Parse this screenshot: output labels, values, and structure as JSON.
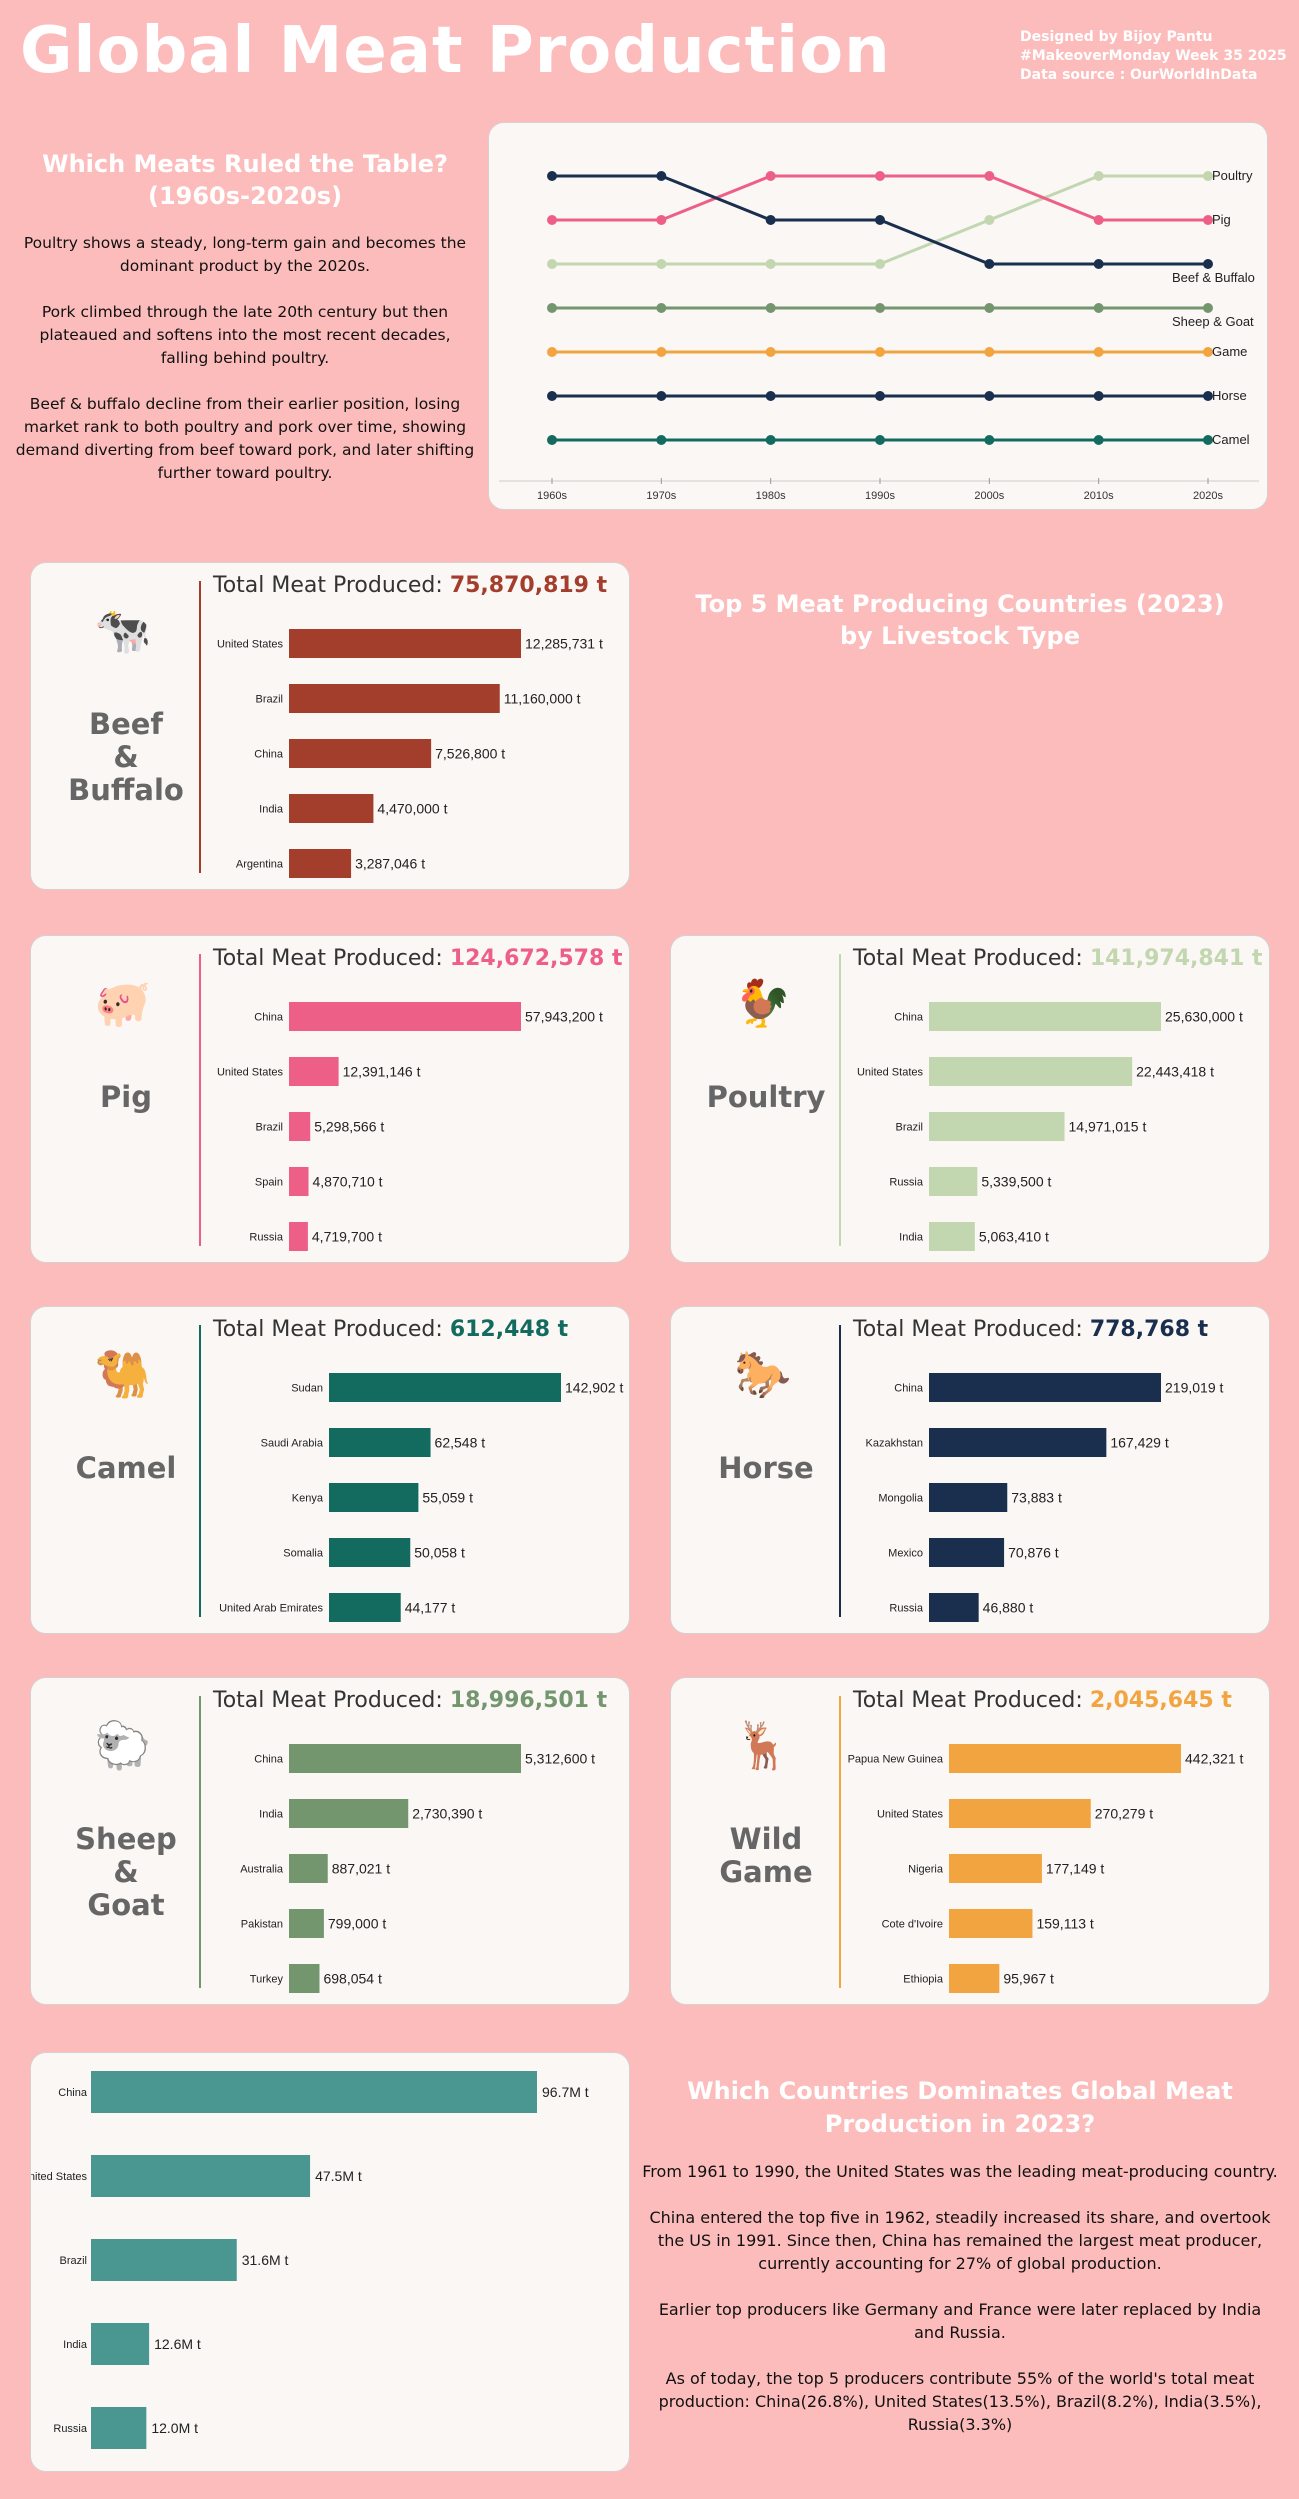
{
  "header": {
    "title": "Global Meat Production",
    "credits": [
      "Designed by Bijoy Pantu",
      "#MakeoverMonday Week 35 2025",
      "Data source : OurWorldInData"
    ]
  },
  "intro": {
    "title_line1": "Which Meats Ruled the Table?",
    "title_line2": "(1960s-2020s)",
    "paragraphs": [
      "Poultry shows a steady, long-term gain and becomes the dominant product by the 2020s.",
      "Pork climbed through the late 20th century but then plateaued and softens into the most recent decades, falling behind poultry.",
      "Beef & buffalo decline from their earlier position, losing market rank to both poultry and pork over time, showing demand diverting from beef toward pork, and later shifting further toward poultry."
    ]
  },
  "section_titles": {
    "top5_line1": "Top 5 Meat Producing Countries (2023)",
    "top5_line2": "by Livestock Type",
    "countries_line1": "Which Countries Dominates Global Meat",
    "countries_line2": "Production in 2023?"
  },
  "total_label": "Total Meat Produced: ",
  "cards": [
    {
      "key": "beef",
      "name_lines": [
        "Beef",
        "&",
        "Buffalo"
      ],
      "icon": "cow-icon",
      "glyph": "🐄",
      "total": "75,870,819 t",
      "color": "#a33d2c"
    },
    {
      "key": "pig",
      "name_lines": [
        "Pig"
      ],
      "icon": "pig-icon",
      "glyph": "🐖",
      "total": "124,672,578 t",
      "color": "#ee5f88"
    },
    {
      "key": "poultry",
      "name_lines": [
        "Poultry"
      ],
      "icon": "rooster-icon",
      "glyph": "🐓",
      "total": "141,974,841 t",
      "color": "#c2d6b0"
    },
    {
      "key": "camel",
      "name_lines": [
        "Camel"
      ],
      "icon": "camel-icon",
      "glyph": "🐫",
      "total": "612,448 t",
      "color": "#136b60"
    },
    {
      "key": "horse",
      "name_lines": [
        "Horse"
      ],
      "icon": "horse-icon",
      "glyph": "🐎",
      "total": "778,768 t",
      "color": "#1a2f4e"
    },
    {
      "key": "sheep",
      "name_lines": [
        "Sheep",
        "&",
        "Goat"
      ],
      "icon": "sheep-icon",
      "glyph": "🐑",
      "total": "18,996,501 t",
      "color": "#74966f"
    },
    {
      "key": "game",
      "name_lines": [
        "Wild",
        "Game"
      ],
      "icon": "deer-icon",
      "glyph": "🦌",
      "total": "2,045,645 t",
      "color": "#f2a440"
    }
  ],
  "colors": {
    "background": "#fcbcbc",
    "panel": "#faf7f5",
    "total_bar": "#4a9691",
    "poultry": "#c2d6b0",
    "pig": "#ee5f88",
    "beef": "#1a2f4e",
    "sheep": "#74966f",
    "game": "#f2a440",
    "horse": "#1a2f4e",
    "camel": "#136b60"
  },
  "chart_data": [
    {
      "type": "line",
      "title": "",
      "x": [
        "1960s",
        "1970s",
        "1980s",
        "1990s",
        "2000s",
        "2010s",
        "2020s"
      ],
      "ylabel": "",
      "y_inverted_rank": true,
      "ylim": [
        1,
        7
      ],
      "series": [
        {
          "name": "Poultry",
          "color": "#c2d6b0",
          "values": [
            3,
            3,
            3,
            3,
            2,
            1,
            1
          ]
        },
        {
          "name": "Pig",
          "color": "#ee5f88",
          "values": [
            2,
            2,
            1,
            1,
            1,
            2,
            2
          ]
        },
        {
          "name": "Beef & Buffalo",
          "color": "#1a2f4e",
          "values": [
            1,
            1,
            2,
            2,
            3,
            3,
            3
          ]
        },
        {
          "name": "Sheep & Goat",
          "color": "#74966f",
          "values": [
            4,
            4,
            4,
            4,
            4,
            4,
            4
          ]
        },
        {
          "name": "Game",
          "color": "#f2a440",
          "values": [
            5,
            5,
            5,
            5,
            5,
            5,
            5
          ]
        },
        {
          "name": "Horse",
          "color": "#1a2f4e",
          "values": [
            6,
            6,
            6,
            6,
            6,
            6,
            6
          ]
        },
        {
          "name": "Camel",
          "color": "#136b60",
          "values": [
            7,
            7,
            7,
            7,
            7,
            7,
            7
          ]
        }
      ]
    },
    {
      "type": "bar",
      "orientation": "horizontal",
      "title": "Beef & Buffalo",
      "categories": [
        "United States",
        "Brazil",
        "China",
        "India",
        "Argentina"
      ],
      "values": [
        12285731,
        11160000,
        7526800,
        4470000,
        3287046
      ],
      "labels": [
        "12,285,731 t",
        "11,160,000 t",
        "7,526,800 t",
        "4,470,000 t",
        "3,287,046 t"
      ]
    },
    {
      "type": "bar",
      "orientation": "horizontal",
      "title": "Pig",
      "categories": [
        "China",
        "United States",
        "Brazil",
        "Spain",
        "Russia"
      ],
      "values": [
        57943200,
        12391146,
        5298566,
        4870710,
        4719700
      ],
      "labels": [
        "57,943,200 t",
        "12,391,146 t",
        "5,298,566 t",
        "4,870,710 t",
        "4,719,700 t"
      ]
    },
    {
      "type": "bar",
      "orientation": "horizontal",
      "title": "Poultry",
      "categories": [
        "China",
        "United States",
        "Brazil",
        "Russia",
        "India"
      ],
      "values": [
        25630000,
        22443418,
        14971015,
        5339500,
        5063410
      ],
      "labels": [
        "25,630,000 t",
        "22,443,418 t",
        "14,971,015 t",
        "5,339,500 t",
        "5,063,410 t"
      ]
    },
    {
      "type": "bar",
      "orientation": "horizontal",
      "title": "Camel",
      "categories": [
        "Sudan",
        "Saudi Arabia",
        "Kenya",
        "Somalia",
        "United Arab Emirates"
      ],
      "values": [
        142902,
        62548,
        55059,
        50058,
        44177
      ],
      "labels": [
        "142,902 t",
        "62,548 t",
        "55,059 t",
        "50,058 t",
        "44,177 t"
      ]
    },
    {
      "type": "bar",
      "orientation": "horizontal",
      "title": "Horse",
      "categories": [
        "China",
        "Kazakhstan",
        "Mongolia",
        "Mexico",
        "Russia"
      ],
      "values": [
        219019,
        167429,
        73883,
        70876,
        46880
      ],
      "labels": [
        "219,019 t",
        "167,429 t",
        "73,883 t",
        "70,876 t",
        "46,880 t"
      ]
    },
    {
      "type": "bar",
      "orientation": "horizontal",
      "title": "Sheep & Goat",
      "categories": [
        "China",
        "India",
        "Australia",
        "Pakistan",
        "Turkey"
      ],
      "values": [
        5312600,
        2730390,
        887021,
        799000,
        698054
      ],
      "labels": [
        "5,312,600 t",
        "2,730,390 t",
        "887,021 t",
        "799,000 t",
        "698,054 t"
      ]
    },
    {
      "type": "bar",
      "orientation": "horizontal",
      "title": "Wild Game",
      "categories": [
        "Papua New Guinea",
        "United States",
        "Nigeria",
        "Cote d'Ivoire",
        "Ethiopia"
      ],
      "values": [
        442321,
        270279,
        177149,
        159113,
        95967
      ],
      "labels": [
        "442,321 t",
        "270,279 t",
        "177,149 t",
        "159,113 t",
        "95,967 t"
      ]
    },
    {
      "type": "bar",
      "orientation": "horizontal",
      "title": "",
      "categories": [
        "China",
        "United States",
        "Brazil",
        "India",
        "Russia"
      ],
      "values": [
        96.7,
        47.5,
        31.6,
        12.6,
        12.0
      ],
      "labels": [
        "96.7M t",
        "47.5M t",
        "31.6M t",
        "12.6M t",
        "12.0M t"
      ]
    }
  ],
  "bottom_text": {
    "paragraphs": [
      "From 1961 to 1990, the United States was the leading meat-producing country.",
      "China entered the top five in 1962, steadily increased its share, and overtook the US in 1991. Since then, China has remained the largest meat producer, currently accounting for 27% of global production.",
      "Earlier top producers like Germany and France were later replaced by India and Russia.",
      "As of today, the top 5 producers contribute 55% of the world's total meat production: China(26.8%), United States(13.5%), Brazil(8.2%), India(3.5%), Russia(3.3%)"
    ]
  }
}
